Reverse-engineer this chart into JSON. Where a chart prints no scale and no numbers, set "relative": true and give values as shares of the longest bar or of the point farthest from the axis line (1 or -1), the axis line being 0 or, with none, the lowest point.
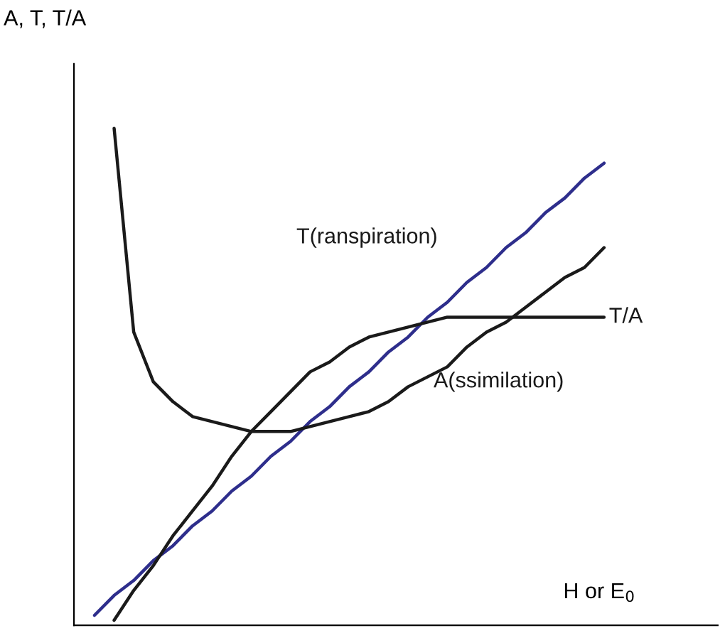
{
  "chart_data": {
    "type": "line",
    "relative": true,
    "ylabel": "A, T, T/A",
    "xlabel": "H or E$_{0}$",
    "legend": false,
    "marker": "none",
    "line_style": "solid",
    "categories": [
      null,
      null,
      null,
      null,
      null,
      null,
      null,
      null,
      null,
      null,
      null,
      null,
      null,
      null,
      null,
      null,
      null,
      null,
      null,
      null,
      null,
      null,
      null,
      null,
      null,
      null,
      null,
      null,
      null
    ],
    "series": [
      {
        "name": "T(ranspiration)",
        "color": "#2e2e8c",
        "values": [
          null,
          0.02,
          0.06,
          0.09,
          0.13,
          0.16,
          0.2,
          0.23,
          0.27,
          0.3,
          0.34,
          0.37,
          0.41,
          0.44,
          0.48,
          0.51,
          0.55,
          0.58,
          0.62,
          0.65,
          0.69,
          0.72,
          0.76,
          0.79,
          0.83,
          0.86,
          0.9,
          0.93,
          null
        ]
      },
      {
        "name": "T/A",
        "color": "#1a1a1a",
        "values": [
          null,
          null,
          0.01,
          0.07,
          0.12,
          0.18,
          0.23,
          0.28,
          0.34,
          0.39,
          0.43,
          0.47,
          0.51,
          0.53,
          0.56,
          0.58,
          0.59,
          0.6,
          0.61,
          0.62,
          0.62,
          0.62,
          0.62,
          0.62,
          0.62,
          0.62,
          0.62,
          0.62,
          null
        ]
      },
      {
        "name": "A(ssimilation)",
        "color": "#1a1a1a",
        "values": [
          null,
          null,
          1.0,
          0.59,
          0.49,
          0.45,
          0.42,
          0.41,
          0.4,
          0.39,
          0.39,
          0.39,
          0.4,
          0.41,
          0.42,
          0.43,
          0.45,
          0.48,
          0.5,
          0.52,
          0.56,
          0.59,
          0.61,
          0.64,
          0.67,
          0.7,
          0.72,
          0.76,
          null
        ]
      }
    ]
  }
}
